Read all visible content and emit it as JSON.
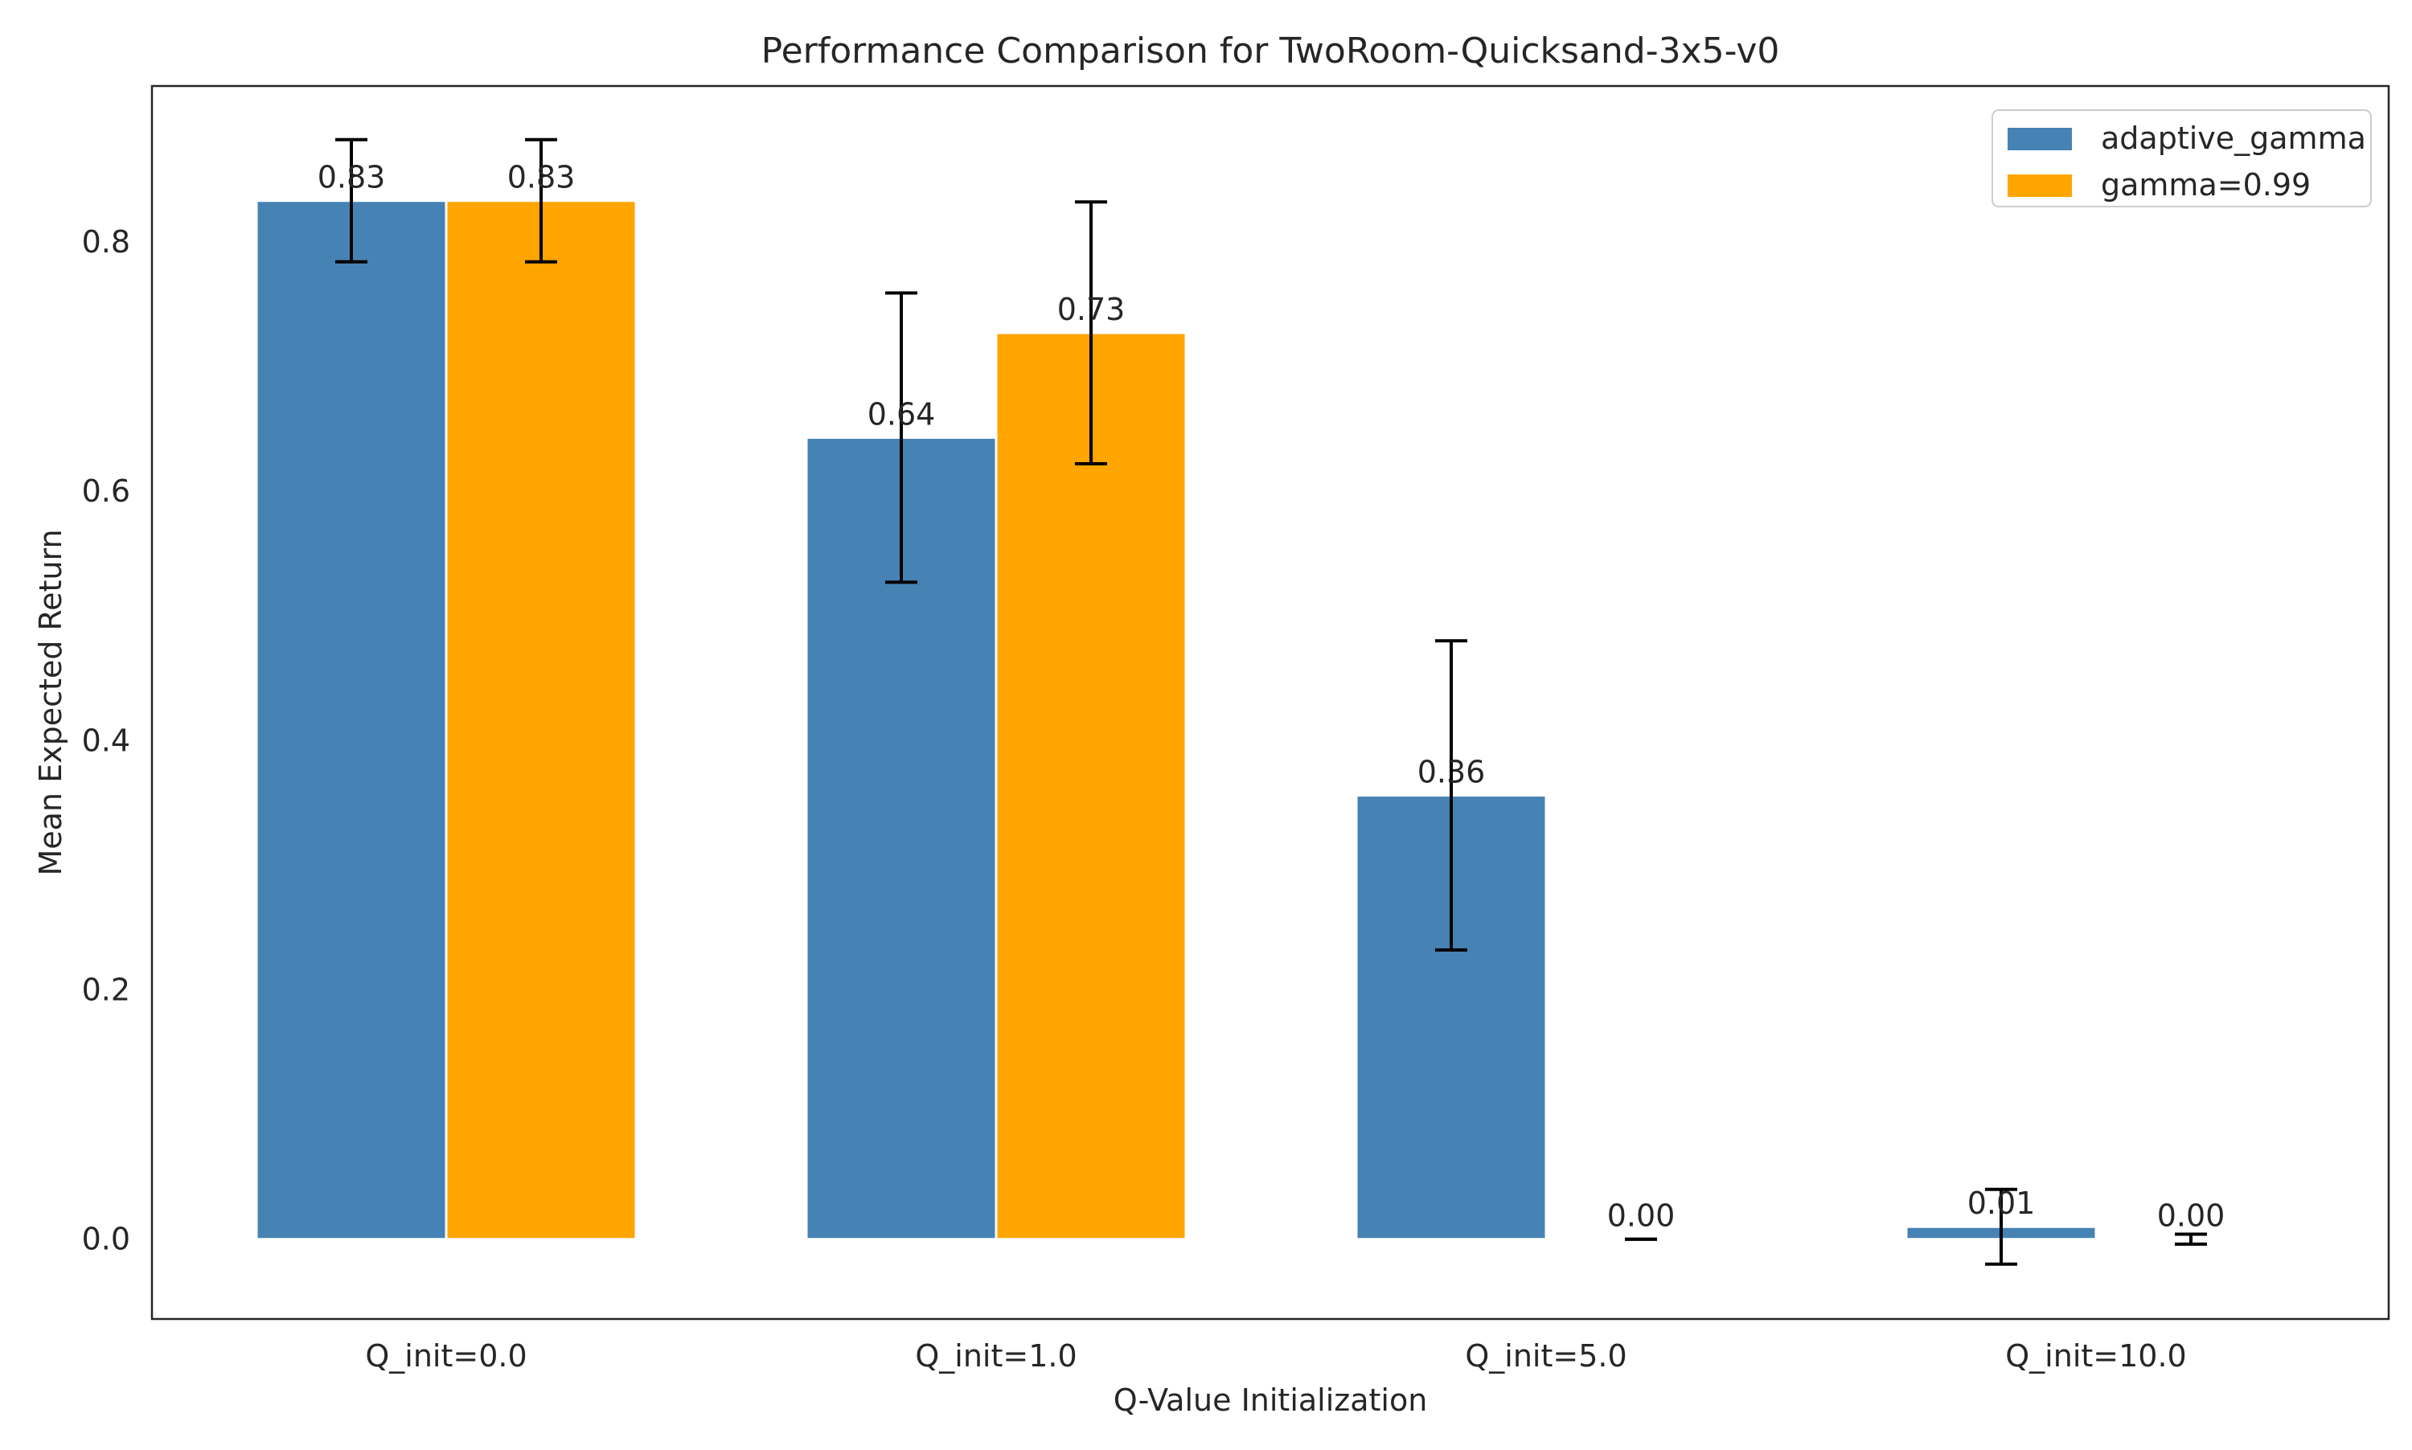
{
  "chart_data": {
    "type": "bar",
    "title": "Performance Comparison for TwoRoom-Quicksand-3x5-v0",
    "xlabel": "Q-Value Initialization",
    "ylabel": "Mean Expected Return",
    "categories": [
      "Q_init=0.0",
      "Q_init=1.0",
      "Q_init=5.0",
      "Q_init=10.0"
    ],
    "series": [
      {
        "name": "adaptive_gamma",
        "color": "#4682b4",
        "values": [
          0.833,
          0.643,
          0.356,
          0.01
        ],
        "errors": [
          0.049,
          0.116,
          0.124,
          0.03
        ],
        "value_labels": [
          "0.83",
          "0.64",
          "0.36",
          "0.01"
        ]
      },
      {
        "name": "gamma=0.99",
        "color": "#ffa500",
        "values": [
          0.833,
          0.727,
          0.0,
          0.0
        ],
        "errors": [
          0.049,
          0.105,
          0.0,
          0.004
        ],
        "value_labels": [
          "0.83",
          "0.73",
          "0.00",
          "0.00"
        ]
      }
    ],
    "yticks": [
      "0.0",
      "0.2",
      "0.4",
      "0.6",
      "0.8"
    ],
    "ytick_values": [
      0.0,
      0.2,
      0.4,
      0.6,
      0.8
    ],
    "ylim": [
      -0.064,
      0.925
    ],
    "grid": false,
    "legend_position": "top-right"
  }
}
